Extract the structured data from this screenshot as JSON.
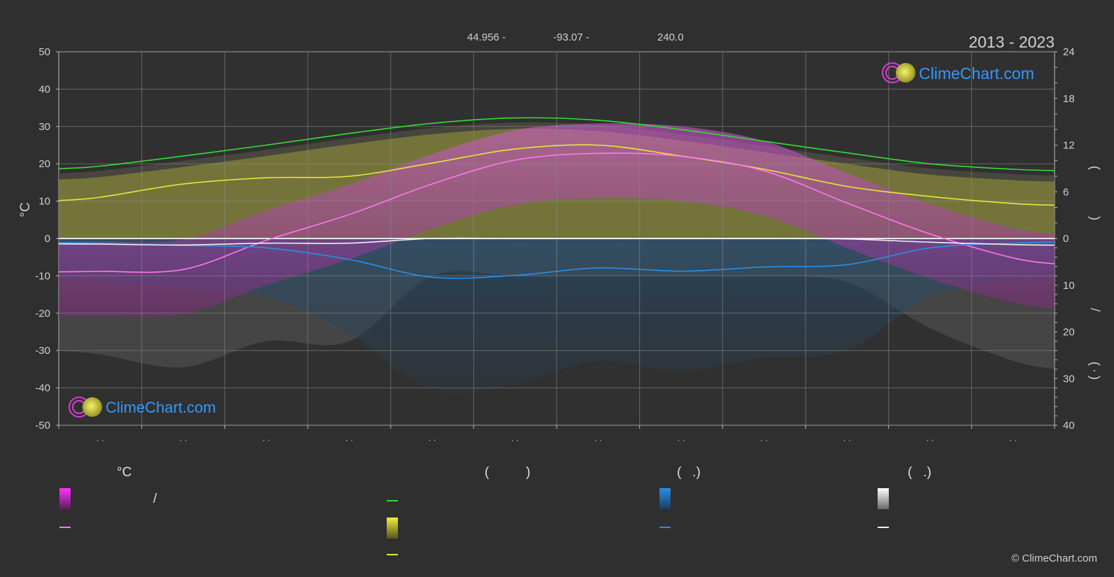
{
  "header": {
    "lat": "44.956 -",
    "lon": "-93.07 -",
    "elev": "240.0",
    "years": "2013 - 2023"
  },
  "brand": {
    "name": "ClimeChart.com",
    "copyright": "© ClimeChart.com",
    "colors": {
      "text": "#2f9bff",
      "ring": "#d93cd9",
      "sun": "#d6d62e"
    }
  },
  "axes": {
    "left_label": "°C",
    "left_ticks": [
      "50",
      "40",
      "30",
      "20",
      "10",
      "0",
      "-10",
      "-20",
      "-30",
      "-40",
      "-50"
    ],
    "right_top_ticks": [
      "24",
      "18",
      "12",
      "6",
      "0"
    ],
    "right_bottom_ticks": [
      "10",
      "20",
      "30",
      "40"
    ],
    "right_glyphs": [
      "(",
      ")",
      "/",
      "(",
      "·",
      ")"
    ],
    "month_ticks": [
      "· ·",
      "· ·",
      "· ·",
      "· ·",
      "· ·",
      "· ·",
      "· ·",
      "· ·",
      "· ·",
      "· ·",
      "· ·",
      "· ·"
    ]
  },
  "legend": {
    "col1_title": "°C",
    "col1_range_slash": "/",
    "col2_title": "(          )",
    "col3_title": "(   .)",
    "col4_title": "(   .)"
  },
  "chart_data": {
    "type": "line",
    "x": [
      "Jan",
      "Feb",
      "Mar",
      "Apr",
      "May",
      "Jun",
      "Jul",
      "Aug",
      "Sep",
      "Oct",
      "Nov",
      "Dec"
    ],
    "ylim": [
      -50,
      50
    ],
    "y2lim_top": [
      0,
      24
    ],
    "y2lim_bottom": [
      0,
      40
    ],
    "grid": true,
    "colors": {
      "daylight": "#33dd33",
      "sunshine": "#e8e83a",
      "sunshine_area": "#9a9a38",
      "temp_area": "#c040c0",
      "temp_line": "#ff77ee",
      "rain_line": "#2a8fe6",
      "rain_area": "#2a5e8a",
      "snow_line": "#f0f0f0",
      "snow_area": "#6c6c6c"
    },
    "series": [
      {
        "key": "daylight",
        "unit": "h",
        "axis": "right_top",
        "values": [
          9.3,
          10.6,
          12.0,
          13.5,
          14.8,
          15.5,
          15.2,
          14.0,
          12.5,
          11.0,
          9.6,
          8.9
        ]
      },
      {
        "key": "sunshine",
        "unit": "h",
        "axis": "right_top",
        "values": [
          5.3,
          7.0,
          7.8,
          8.0,
          9.7,
          11.5,
          12.0,
          10.6,
          8.9,
          6.7,
          5.4,
          4.5
        ]
      },
      {
        "key": "temp_mean",
        "unit": "°C",
        "axis": "left",
        "values": [
          -8.8,
          -8.3,
          -0.5,
          6.4,
          14.6,
          21.0,
          22.8,
          22.0,
          18.1,
          9.5,
          1.2,
          -5.2
        ]
      },
      {
        "key": "rain",
        "unit": "mm",
        "axis": "right_bottom",
        "values": [
          1.0,
          1.5,
          2.0,
          4.5,
          8.3,
          7.9,
          6.3,
          7.0,
          6.1,
          5.6,
          2.0,
          1.0
        ]
      },
      {
        "key": "snow",
        "unit": "mm",
        "axis": "right_bottom",
        "values": [
          1.2,
          1.4,
          1.0,
          1.0,
          0.0,
          0.0,
          0.0,
          0.0,
          0.0,
          0.1,
          0.8,
          1.3
        ]
      }
    ]
  }
}
